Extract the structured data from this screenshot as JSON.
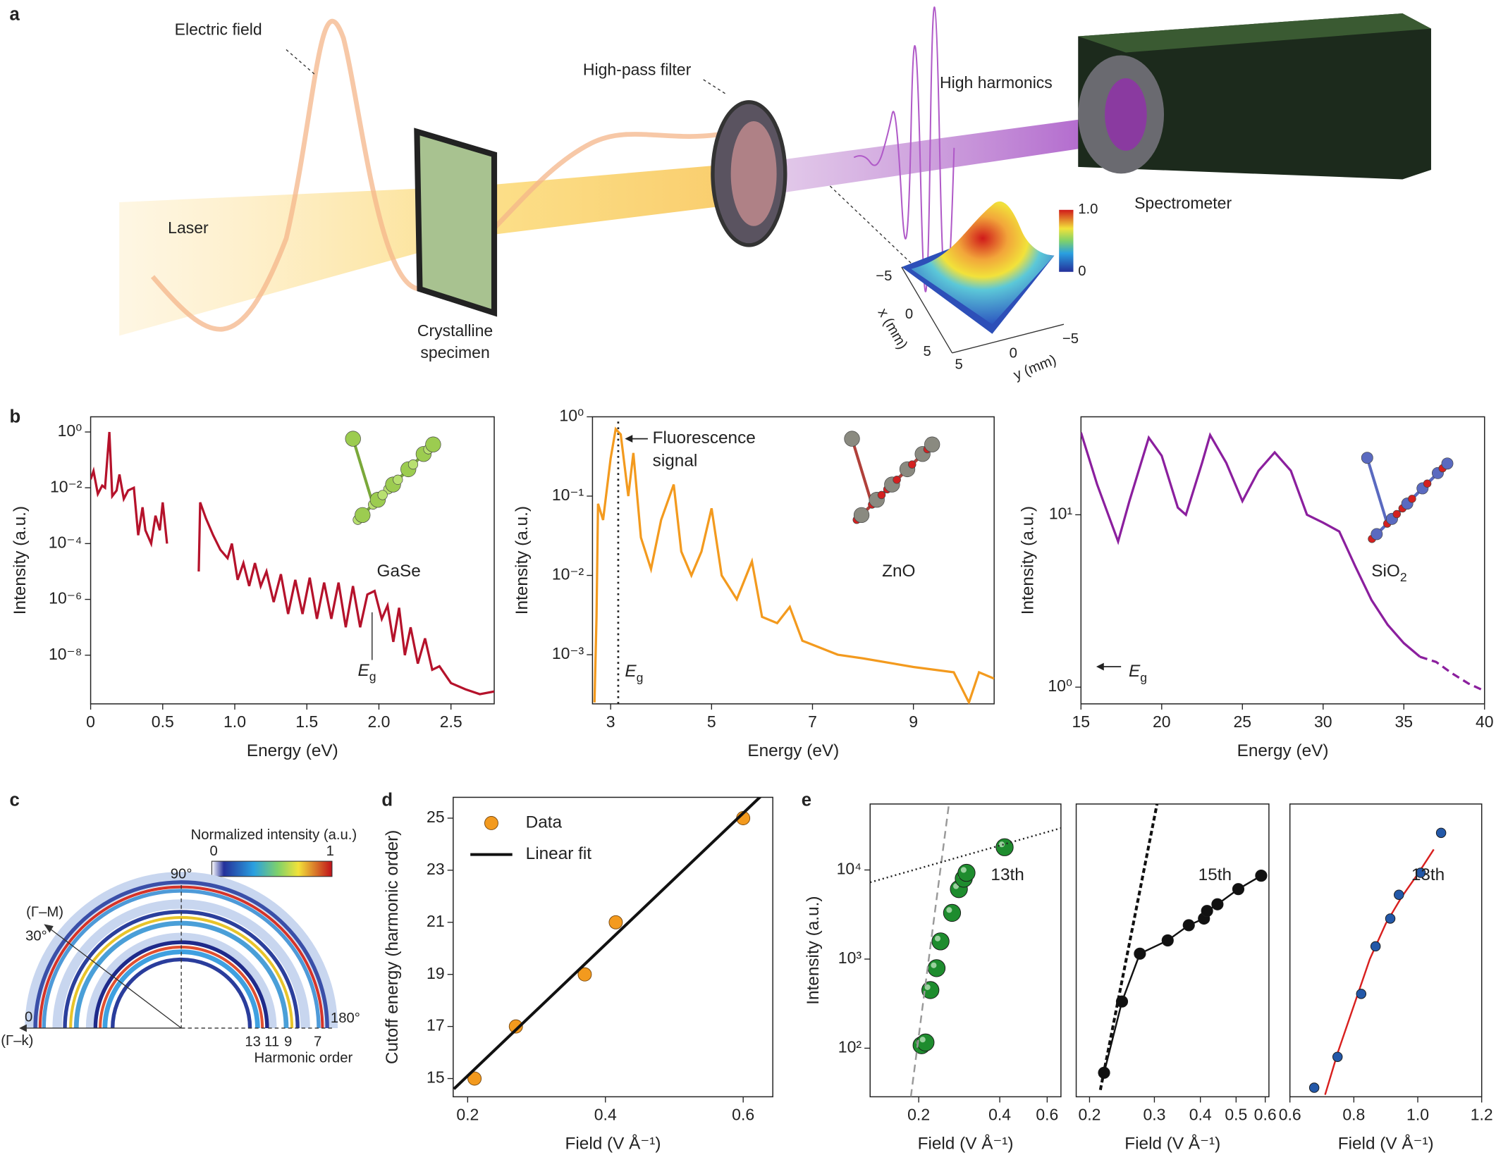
{
  "panel_labels": [
    "a",
    "b",
    "c",
    "d",
    "e"
  ],
  "diagram_a": {
    "electric_field": "Electric field",
    "high_pass_filter": "High-pass filter",
    "high_harmonics": "High harmonics",
    "laser": "Laser",
    "specimen": [
      "Crystalline",
      "specimen"
    ],
    "spectrometer": "Spectrometer",
    "colorbar_max": "1.0",
    "colorbar_min": "0",
    "x_axis_label": "x (mm)",
    "y_axis_label": "y (mm)",
    "x_ticks": [
      "−5",
      "0",
      "5"
    ],
    "y_ticks": [
      "5",
      "0",
      "−5"
    ]
  },
  "diagram_c": {
    "colorbar_title": "Normalized intensity (a.u.)",
    "colorbar_min": 0,
    "colorbar_max": 1,
    "angle_90": "90°",
    "direction_gm": "(Γ–M)",
    "angle_30": "30°",
    "angle_0": "0",
    "angle_180": "180°",
    "direction_gk": "(Γ–k)",
    "harmonic_orders": [
      13,
      11,
      9,
      7
    ],
    "harmonic_label": "Harmonic order"
  },
  "chart_data": [
    {
      "type": "line",
      "x_label": "Energy (eV)",
      "y_label": "Intensity (a.u.)",
      "xlim": [
        0,
        2.8
      ],
      "ylim": [
        1.8e-10,
        3.5
      ],
      "y_log": true,
      "xticks": [
        0,
        0.5,
        {
          "value": 1,
          "label": "1.0"
        },
        1.5,
        {
          "value": 2,
          "label": "2.0"
        },
        2.5
      ],
      "yticks": [
        {
          "value": 1,
          "label": "10⁰"
        },
        {
          "value": 0.01,
          "label": "10⁻²"
        },
        {
          "value": 0.0001,
          "label": "10⁻⁴"
        },
        {
          "value": 1e-06,
          "label": "10⁻⁶"
        },
        {
          "value": 1e-08,
          "label": "10⁻⁸"
        }
      ],
      "material": {
        "text": "GaSe"
      },
      "gap_label": {
        "text": "E",
        "sub": "g"
      },
      "series": [
        {
          "color": "#b5122b",
          "x": [
            0,
            0.02,
            0.05,
            0.08,
            0.1,
            0.13,
            0.15,
            0.18,
            0.2,
            0.23,
            0.26,
            0.3,
            0.33,
            0.36,
            0.38,
            0.42,
            0.45,
            0.48,
            0.5,
            0.53,
            0.6,
            0.75,
            0.76,
            0.8,
            0.85,
            0.9,
            0.95,
            0.98,
            1.02,
            1.06,
            1.1,
            1.14,
            1.18,
            1.22,
            1.27,
            1.32,
            1.37,
            1.42,
            1.47,
            1.52,
            1.57,
            1.62,
            1.67,
            1.72,
            1.77,
            1.82,
            1.87,
            1.92,
            1.97,
            2.02,
            2.06,
            2.1,
            2.14,
            2.18,
            2.22,
            2.27,
            2.32,
            2.37,
            2.42,
            2.5,
            2.6,
            2.7,
            2.8
          ],
          "values": [
            0.02,
            0.04,
            0.006,
            0.012,
            0.01,
            1,
            0.005,
            0.008,
            0.03,
            0.004,
            0.008,
            0.01,
            0.0002,
            0.002,
            0.0003,
            0.0001,
            0.001,
            0.0003,
            0.003,
            0.0001,
            null,
            1e-05,
            0.003,
            0.0008,
            0.0002,
            6e-05,
            3e-05,
            0.0001,
            5e-06,
            2e-05,
            3e-06,
            2e-05,
            3e-06,
            1e-05,
            8e-07,
            8e-06,
            3e-07,
            5e-06,
            3e-07,
            6e-06,
            2e-07,
            4e-06,
            2e-07,
            4e-06,
            1e-07,
            3e-06,
            1e-07,
            1.5e-06,
            2e-06,
            2e-07,
            6e-07,
            3e-08,
            5e-07,
            1e-08,
            1e-07,
            5e-09,
            4e-08,
            3e-09,
            4e-09,
            1e-09,
            6e-10,
            4e-10,
            5e-10
          ]
        }
      ]
    },
    {
      "type": "line",
      "x_label": "Energy (eV)",
      "y_label": "Intensity (a.u.)",
      "xlim": [
        2.64,
        10.6
      ],
      "ylim": [
        0.00024,
        1
      ],
      "y_log": true,
      "xticks": [
        3,
        5,
        7,
        9
      ],
      "yticks": [
        {
          "value": 1,
          "label": "10⁰"
        },
        {
          "value": 0.1,
          "label": "10⁻¹"
        },
        {
          "value": 0.01,
          "label": "10⁻²"
        },
        {
          "value": 0.001,
          "label": "10⁻³"
        }
      ],
      "material": {
        "text": "ZnO"
      },
      "gap_label": {
        "text": "E",
        "sub": "g"
      },
      "gap_line_x": 3.15,
      "fluorescence_label": [
        "Fluorescence",
        "signal"
      ],
      "series": [
        {
          "color": "#f39a1e",
          "x": [
            2.68,
            2.72,
            2.75,
            2.85,
            3.0,
            3.1,
            3.2,
            3.35,
            3.45,
            3.6,
            3.8,
            4.0,
            4.25,
            4.4,
            4.6,
            4.8,
            5.0,
            5.2,
            5.5,
            5.8,
            6.0,
            6.3,
            6.55,
            6.8,
            7.5,
            8.0,
            9.0,
            9.8,
            10.1,
            10.3,
            10.6
          ],
          "values": [
            0.00025,
            0.003,
            0.08,
            0.05,
            0.3,
            0.7,
            0.6,
            0.1,
            0.35,
            0.03,
            0.012,
            0.05,
            0.14,
            0.02,
            0.01,
            0.02,
            0.07,
            0.01,
            0.005,
            0.015,
            0.003,
            0.0025,
            0.004,
            0.0015,
            0.001,
            0.0009,
            0.0007,
            0.0006,
            0.00025,
            0.0006,
            0.0005
          ]
        }
      ]
    },
    {
      "type": "line",
      "x_label": "Energy (eV)",
      "y_label": "Intensity (a.u.)",
      "xlim": [
        15,
        40
      ],
      "ylim": [
        0.8,
        37
      ],
      "y_log": true,
      "xticks": [
        15,
        20,
        25,
        30,
        35,
        40
      ],
      "yticks": [
        {
          "value": 1,
          "label": "10⁰"
        },
        {
          "value": 10,
          "label": "10¹"
        }
      ],
      "material": {
        "text": "SiO",
        "sub": "2"
      },
      "gap_label": {
        "text": "E",
        "sub": "g"
      },
      "series": [
        {
          "color": "#8b1f9e",
          "x": [
            15,
            16,
            17.3,
            18,
            19.2,
            20,
            21,
            21.5,
            22.5,
            23,
            24,
            25,
            26,
            27,
            28,
            29,
            30,
            31,
            32,
            33,
            34,
            35,
            36
          ],
          "values": [
            30,
            15,
            7,
            12,
            28,
            22,
            11,
            10,
            20,
            29,
            20,
            12,
            18,
            23,
            18,
            10,
            9,
            8,
            5,
            3.2,
            2.3,
            1.8,
            1.5
          ]
        },
        {
          "color": "#8b1f9e",
          "dash": "dashed",
          "x": [
            36,
            37,
            38,
            39,
            40
          ],
          "values": [
            1.5,
            1.4,
            1.2,
            1.05,
            0.95
          ]
        }
      ]
    },
    {
      "type": "scatter",
      "x_label": "Field (V Å⁻¹)",
      "y_label": "Cutoff energy (harmonic order)",
      "xlim": [
        0.179,
        0.643
      ],
      "ylim": [
        14.3,
        25.8
      ],
      "xticks": [
        0.2,
        0.4,
        0.6
      ],
      "yticks": [
        15,
        17,
        19,
        21,
        23,
        25
      ],
      "legend": "upper left",
      "series": [
        {
          "name": "Data",
          "color": "#f39a1e",
          "x": [
            0.21,
            0.27,
            0.37,
            0.415,
            0.6
          ],
          "values": [
            15,
            17,
            19,
            21,
            25
          ]
        },
        {
          "name": "Linear fit",
          "color": "#111111",
          "type": "line",
          "x": [
            0.18,
            0.632
          ],
          "values": [
            14.6,
            26
          ]
        }
      ]
    },
    {
      "type": "scatter",
      "x_label": "Field (V Å⁻¹)",
      "y_label": "Intensity (a.u.)",
      "xlim": [
        0.132,
        0.675
      ],
      "x_log": true,
      "ylim": [
        28.5,
        55000
      ],
      "y_log": true,
      "xticks": [
        0.2,
        0.4,
        0.6
      ],
      "yticks": [
        {
          "value": 100,
          "label": "10²"
        },
        {
          "value": 1000,
          "label": "10³"
        },
        {
          "value": 10000,
          "label": "10⁴"
        }
      ],
      "order_label": "13th",
      "series": [
        {
          "color": "#1e8c2e",
          "x": [
            0.205,
            0.212,
            0.221,
            0.233,
            0.241,
            0.266,
            0.282,
            0.294,
            0.301,
            0.417
          ],
          "values": [
            108,
            116,
            449,
            791,
            1580,
            3300,
            6100,
            8000,
            9300,
            18000
          ]
        },
        {
          "color": "#999999",
          "type": "line",
          "dash": "dashed",
          "x": [
            0.187,
            0.259
          ],
          "values": [
            28.5,
            55000
          ]
        },
        {
          "color": "#222222",
          "type": "line",
          "dash": "dotted",
          "x": [
            0.132,
            0.675
          ],
          "values": [
            7260,
            29500
          ]
        }
      ]
    },
    {
      "type": "scatter",
      "x_label": "Field (V Å⁻¹)",
      "xlim": [
        0.184,
        0.614
      ],
      "x_log": true,
      "ylim": [
        28.5,
        55000
      ],
      "y_log": true,
      "xticks": [
        0.2,
        0.3,
        0.4,
        0.5,
        0.6
      ],
      "order_label": "15th",
      "series": [
        {
          "color": "#111111",
          "type": "line",
          "markers": true,
          "x": [
            0.219,
            0.245,
            0.274,
            0.326,
            0.372,
            0.409,
            0.417,
            0.445,
            0.507,
            0.585
          ],
          "values": [
            53,
            334,
            1150,
            1620,
            2400,
            2850,
            3470,
            4120,
            6100,
            8630
          ]
        },
        {
          "color": "#111111",
          "type": "line",
          "dash": "dashed",
          "x": [
            0.214,
            0.305
          ],
          "values": [
            34,
            55000
          ]
        }
      ]
    },
    {
      "type": "scatter",
      "x_label": "Field (V Å⁻¹)",
      "xlim": [
        0.6,
        1.2
      ],
      "ylim": [
        28.5,
        55000
      ],
      "y_log": true,
      "xticks": [
        0.6,
        0.8,
        {
          "value": 1,
          "label": "1.0"
        },
        1.2
      ],
      "order_label": "13th",
      "series": [
        {
          "color": "#d8201f",
          "type": "line",
          "x": [
            0.71,
            0.75,
            0.8,
            0.85,
            0.9,
            0.95,
            1.0,
            1.05
          ],
          "values": [
            30,
            90,
            300,
            1000,
            2500,
            5000,
            9000,
            17000
          ]
        },
        {
          "color": "#2358a8",
          "x": [
            0.676,
            0.749,
            0.823,
            0.868,
            0.914,
            0.941,
            1.009,
            1.073
          ],
          "values": [
            36,
            80,
            407,
            1390,
            2850,
            5270,
            9300,
            26100
          ],
          "xerr": [
            0.015,
            0.015,
            0.015,
            0.015,
            0.015,
            0.015,
            0.015,
            0.015
          ]
        }
      ]
    }
  ]
}
